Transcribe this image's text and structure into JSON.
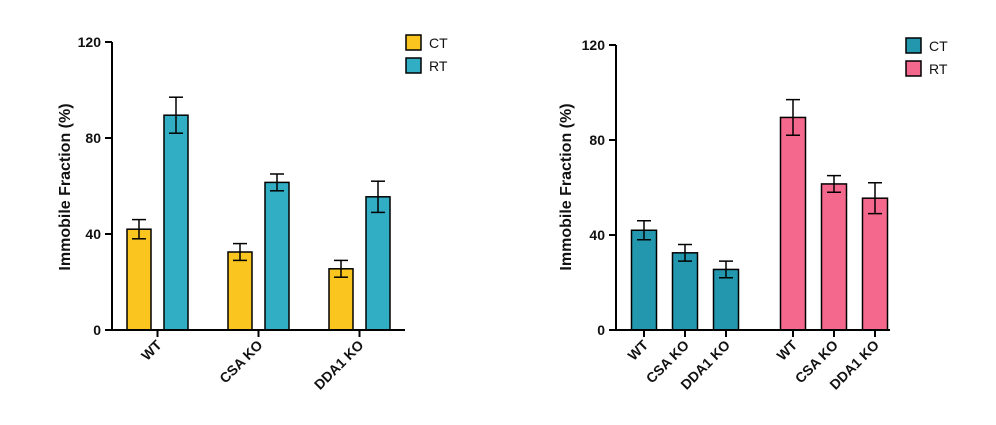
{
  "chart_data": [
    {
      "type": "bar",
      "title": "",
      "xlabel": "",
      "ylabel": "Immobile Fraction (%)",
      "ylim": [
        0,
        120
      ],
      "yticks": [
        "0",
        "40",
        "80",
        "120"
      ],
      "ytick_values": [
        0,
        40,
        80,
        120
      ],
      "categories": [
        "WT",
        "CSA KO",
        "DDA1 KO"
      ],
      "layout": "grouped",
      "legend_position": "top-right",
      "series": [
        {
          "name": "CT",
          "color": "#F9C51E",
          "values": [
            42,
            32.5,
            25.5
          ],
          "errors": [
            4,
            3.5,
            3.5
          ]
        },
        {
          "name": "RT",
          "color": "#31AEC3",
          "values": [
            89.5,
            61.5,
            55.5
          ],
          "errors": [
            7.5,
            3.5,
            6.5
          ]
        }
      ]
    },
    {
      "type": "bar",
      "title": "",
      "xlabel": "",
      "ylabel": "Immobile Fraction (%)",
      "ylim": [
        0,
        120
      ],
      "yticks": [
        "0",
        "40",
        "80",
        "120"
      ],
      "ytick_values": [
        0,
        40,
        80,
        120
      ],
      "layout": "sequential",
      "legend_position": "top-right",
      "series": [
        {
          "name": "CT",
          "color": "#2397AE",
          "categories": [
            "WT",
            "CSA KO",
            "DDA1 KO"
          ],
          "values": [
            42,
            32.5,
            25.5
          ],
          "errors": [
            4,
            3.5,
            3.5
          ]
        },
        {
          "name": "RT",
          "color": "#F5688D",
          "categories": [
            "WT",
            "CSA KO",
            "DDA1 KO"
          ],
          "values": [
            89.5,
            61.5,
            55.5
          ],
          "errors": [
            7.5,
            3.5,
            6.5
          ]
        }
      ]
    }
  ]
}
